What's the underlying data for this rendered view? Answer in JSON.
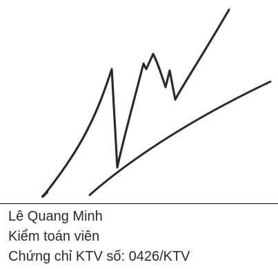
{
  "signature": {
    "ink_color": "#2b2b2b"
  },
  "signer": {
    "name": "Lê Quang Minh",
    "title": "Kiểm toán viên",
    "certificate": "Chứng chỉ KTV số: 0426/KTV"
  },
  "colors": {
    "text": "#2a2a2a",
    "rule": "#000000",
    "background": "#ffffff"
  }
}
